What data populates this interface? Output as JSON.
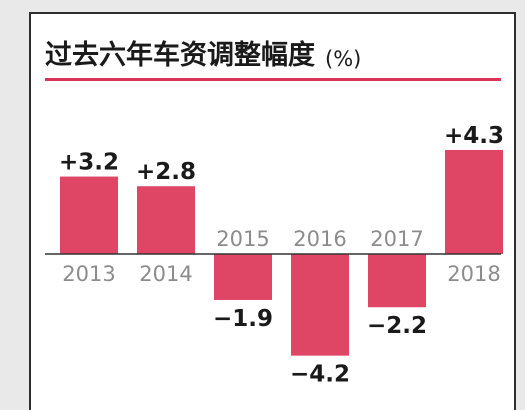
{
  "chart_data": {
    "type": "bar",
    "title": "过去六年车资调整幅度",
    "unit": "(%)",
    "categories": [
      "2013",
      "2014",
      "2015",
      "2016",
      "2017",
      "2018"
    ],
    "values": [
      3.2,
      2.8,
      -1.9,
      -4.2,
      -2.2,
      4.3
    ],
    "value_labels": [
      "+3.2",
      "+2.8",
      "−1.9",
      "−4.2",
      "−2.2",
      "+4.3"
    ],
    "bar_color": "#df4665",
    "title_rule_color": "#d9355b",
    "axis_color": "#333333",
    "grid": false,
    "legend": "none"
  }
}
